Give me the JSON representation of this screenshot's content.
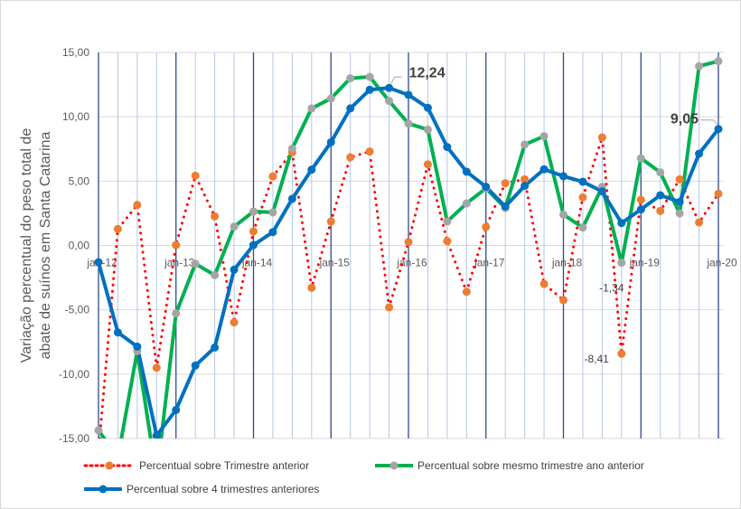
{
  "chart_data": {
    "type": "line",
    "title": "",
    "ylabel": "Variação percentual do peso total de abate de suínos em Santa Catarina",
    "ylabel_lines": [
      "Variação percentual do peso total de",
      "abate de suínos em Santa Catarina"
    ],
    "xlabel": "",
    "ylim": [
      -15,
      15
    ],
    "yticks": [
      "-15,00",
      "-10,00",
      "-5,00",
      "0,00",
      "5,00",
      "10,00",
      "15,00"
    ],
    "ytick_values": [
      -15,
      -10,
      -5,
      0,
      5,
      10,
      15
    ],
    "xtick_labels": [
      "jan-12",
      "jan-13",
      "jan-14",
      "jan-15",
      "jan-16",
      "jan-17",
      "jan-18",
      "jan-19",
      "jan-20"
    ],
    "points_per_year": 4,
    "grid": true,
    "legend_position": "bottom",
    "series": [
      {
        "name": "Percentual sobre Trimestre anterior",
        "style": "dotted",
        "line_color": "#ff0000",
        "marker_color": "#ed7d31",
        "values": [
          -16,
          1.28,
          3.15,
          -9.5,
          0.03,
          5.42,
          2.26,
          -5.98,
          1.09,
          5.37,
          7.25,
          -3.29,
          1.86,
          6.85,
          7.3,
          -4.81,
          0.27,
          6.31,
          0.34,
          -3.6,
          1.44,
          4.84,
          5.14,
          -2.99,
          -4.25,
          3.74,
          8.4,
          -8.41,
          3.55,
          2.68,
          5.14,
          1.79,
          4.02
        ]
      },
      {
        "name": "Percentual sobre mesmo trimestre ano anterior",
        "style": "solid",
        "line_color": "#00b050",
        "marker_color": "#a5a5a5",
        "values": [
          -14.37,
          -16.5,
          -8.21,
          -18,
          -5.28,
          -1.42,
          -2.31,
          1.46,
          2.64,
          2.57,
          7.53,
          10.65,
          11.42,
          12.99,
          13.1,
          11.23,
          9.47,
          9.0,
          1.86,
          3.27,
          4.44,
          2.92,
          7.84,
          8.49,
          2.4,
          1.39,
          4.56,
          -1.34,
          6.78,
          5.68,
          2.49,
          13.93,
          14.32
        ]
      },
      {
        "name": "Percentual sobre 4 trimestres anteriores",
        "style": "solid",
        "line_color": "#0070c0",
        "marker_color": "#0070c0",
        "values": [
          -1.3,
          -6.76,
          -7.86,
          -14.77,
          -12.78,
          -9.33,
          -7.93,
          -1.88,
          0.03,
          1.04,
          3.62,
          5.89,
          8.02,
          10.65,
          12.1,
          12.24,
          11.7,
          10.7,
          7.65,
          5.73,
          4.56,
          3.03,
          4.63,
          5.92,
          5.38,
          4.95,
          4.2,
          1.74,
          2.8,
          3.9,
          3.39,
          7.13,
          9.05
        ]
      }
    ],
    "annotations": [
      {
        "text": "12,24",
        "series": 2,
        "index": 15,
        "bold": true
      },
      {
        "text": "9,05",
        "series": 2,
        "index": 32,
        "bold": true
      },
      {
        "text": "-1,34",
        "series": 1,
        "index": 27,
        "bold": false
      },
      {
        "text": "-8,41",
        "series": 0,
        "index": 27,
        "bold": false
      }
    ]
  }
}
